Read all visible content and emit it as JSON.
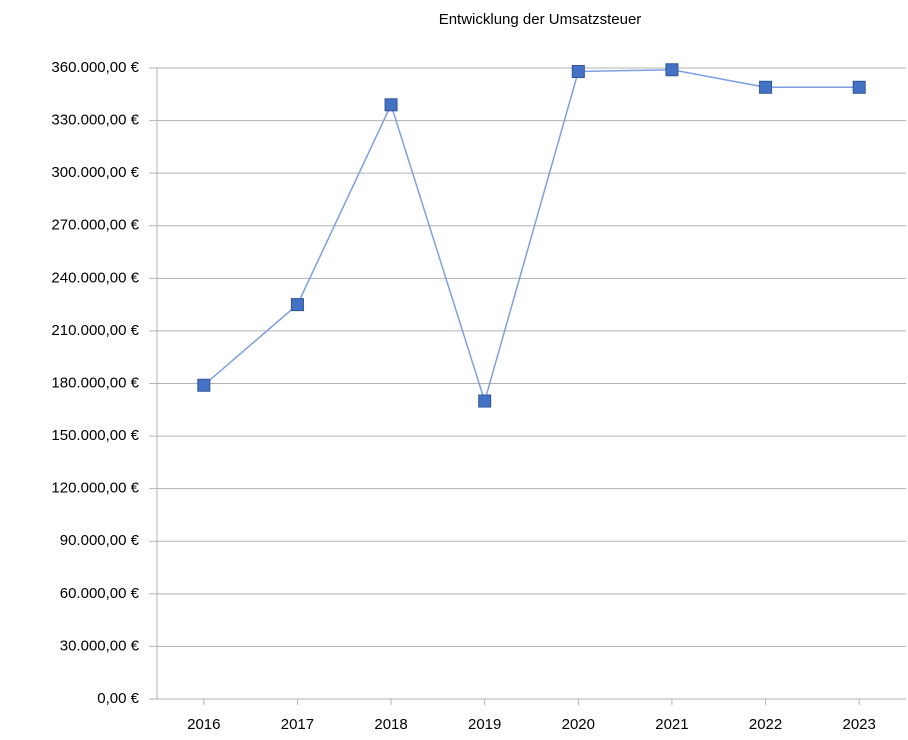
{
  "chart_data": {
    "type": "line",
    "title": "Entwicklung der Umsatzsteuer",
    "categories": [
      "2016",
      "2017",
      "2018",
      "2019",
      "2020",
      "2021",
      "2022",
      "2023"
    ],
    "series": [
      {
        "name": "Umsatzsteuer",
        "color": "#4472c4",
        "values": [
          179000,
          225000,
          339000,
          170000,
          358000,
          359000,
          349000,
          349000
        ]
      }
    ],
    "ylim": [
      0,
      360000
    ],
    "yticks": [
      {
        "value": 0,
        "label": "0,00 €"
      },
      {
        "value": 30000,
        "label": "30.000,00 €"
      },
      {
        "value": 60000,
        "label": "60.000,00 €"
      },
      {
        "value": 90000,
        "label": "90.000,00 €"
      },
      {
        "value": 120000,
        "label": "120.000,00 €"
      },
      {
        "value": 150000,
        "label": "150.000,00 €"
      },
      {
        "value": 180000,
        "label": "180.000,00 €"
      },
      {
        "value": 210000,
        "label": "210.000,00 €"
      },
      {
        "value": 240000,
        "label": "240.000,00 €"
      },
      {
        "value": 270000,
        "label": "270.000,00 €"
      },
      {
        "value": 300000,
        "label": "300.000,00 €"
      },
      {
        "value": 330000,
        "label": "330.000,00 €"
      },
      {
        "value": 360000,
        "label": "360.000,00 €"
      }
    ],
    "grid": true
  }
}
